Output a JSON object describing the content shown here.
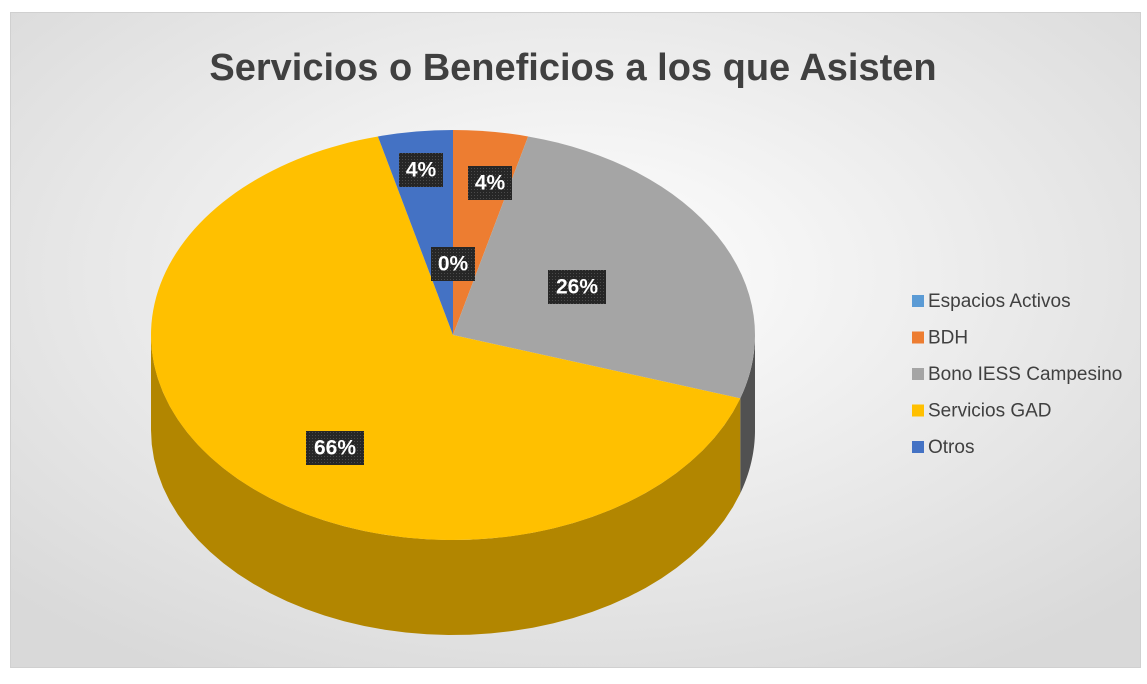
{
  "chart_data": {
    "type": "pie",
    "title": "Servicios o Beneficios a los que Asisten",
    "categories": [
      "Espacios Activos",
      "BDH",
      "Bono IESS Campesino",
      "Servicios GAD",
      "Otros"
    ],
    "values": [
      0,
      4,
      26,
      66,
      4
    ],
    "value_labels": [
      "0%",
      "4%",
      "26%",
      "66%",
      "4%"
    ],
    "colors": [
      "#5b9bd5",
      "#ed7d31",
      "#a5a5a5",
      "#ffc000",
      "#4472c4"
    ],
    "legend": "right"
  }
}
